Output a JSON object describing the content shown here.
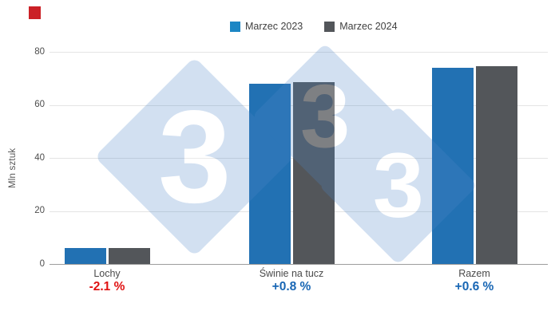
{
  "brand": {
    "logo_color": "#cb2026",
    "watermark_glyph": "3",
    "watermark_color": "#4e86c8"
  },
  "chart_data": {
    "type": "bar",
    "title": "",
    "ylabel": "Mln sztuk",
    "ylim": [
      0,
      80
    ],
    "yticks": [
      0,
      20,
      40,
      60,
      80
    ],
    "grid": true,
    "legend_position": "top-center",
    "categories": [
      "Lochy",
      "Świnie na tucz",
      "Razem"
    ],
    "series": [
      {
        "name": "Marzec 2023",
        "color": "#2271b3",
        "swatch": "#1c86c4",
        "values": [
          6.15,
          67.97,
          74.12
        ]
      },
      {
        "name": "Marzec 2024",
        "color": "#53565a",
        "swatch": "#53565a",
        "values": [
          6.02,
          68.56,
          74.58
        ]
      }
    ],
    "annotations": [
      {
        "text": "-2.1 %",
        "color": "#e01212"
      },
      {
        "text": "+0.8 %",
        "color": "#1866b4"
      },
      {
        "text": "+0.6 %",
        "color": "#1866b4"
      }
    ],
    "axis_line_color": "#9c9c9c",
    "gridline_color": "#e4e4e4"
  }
}
